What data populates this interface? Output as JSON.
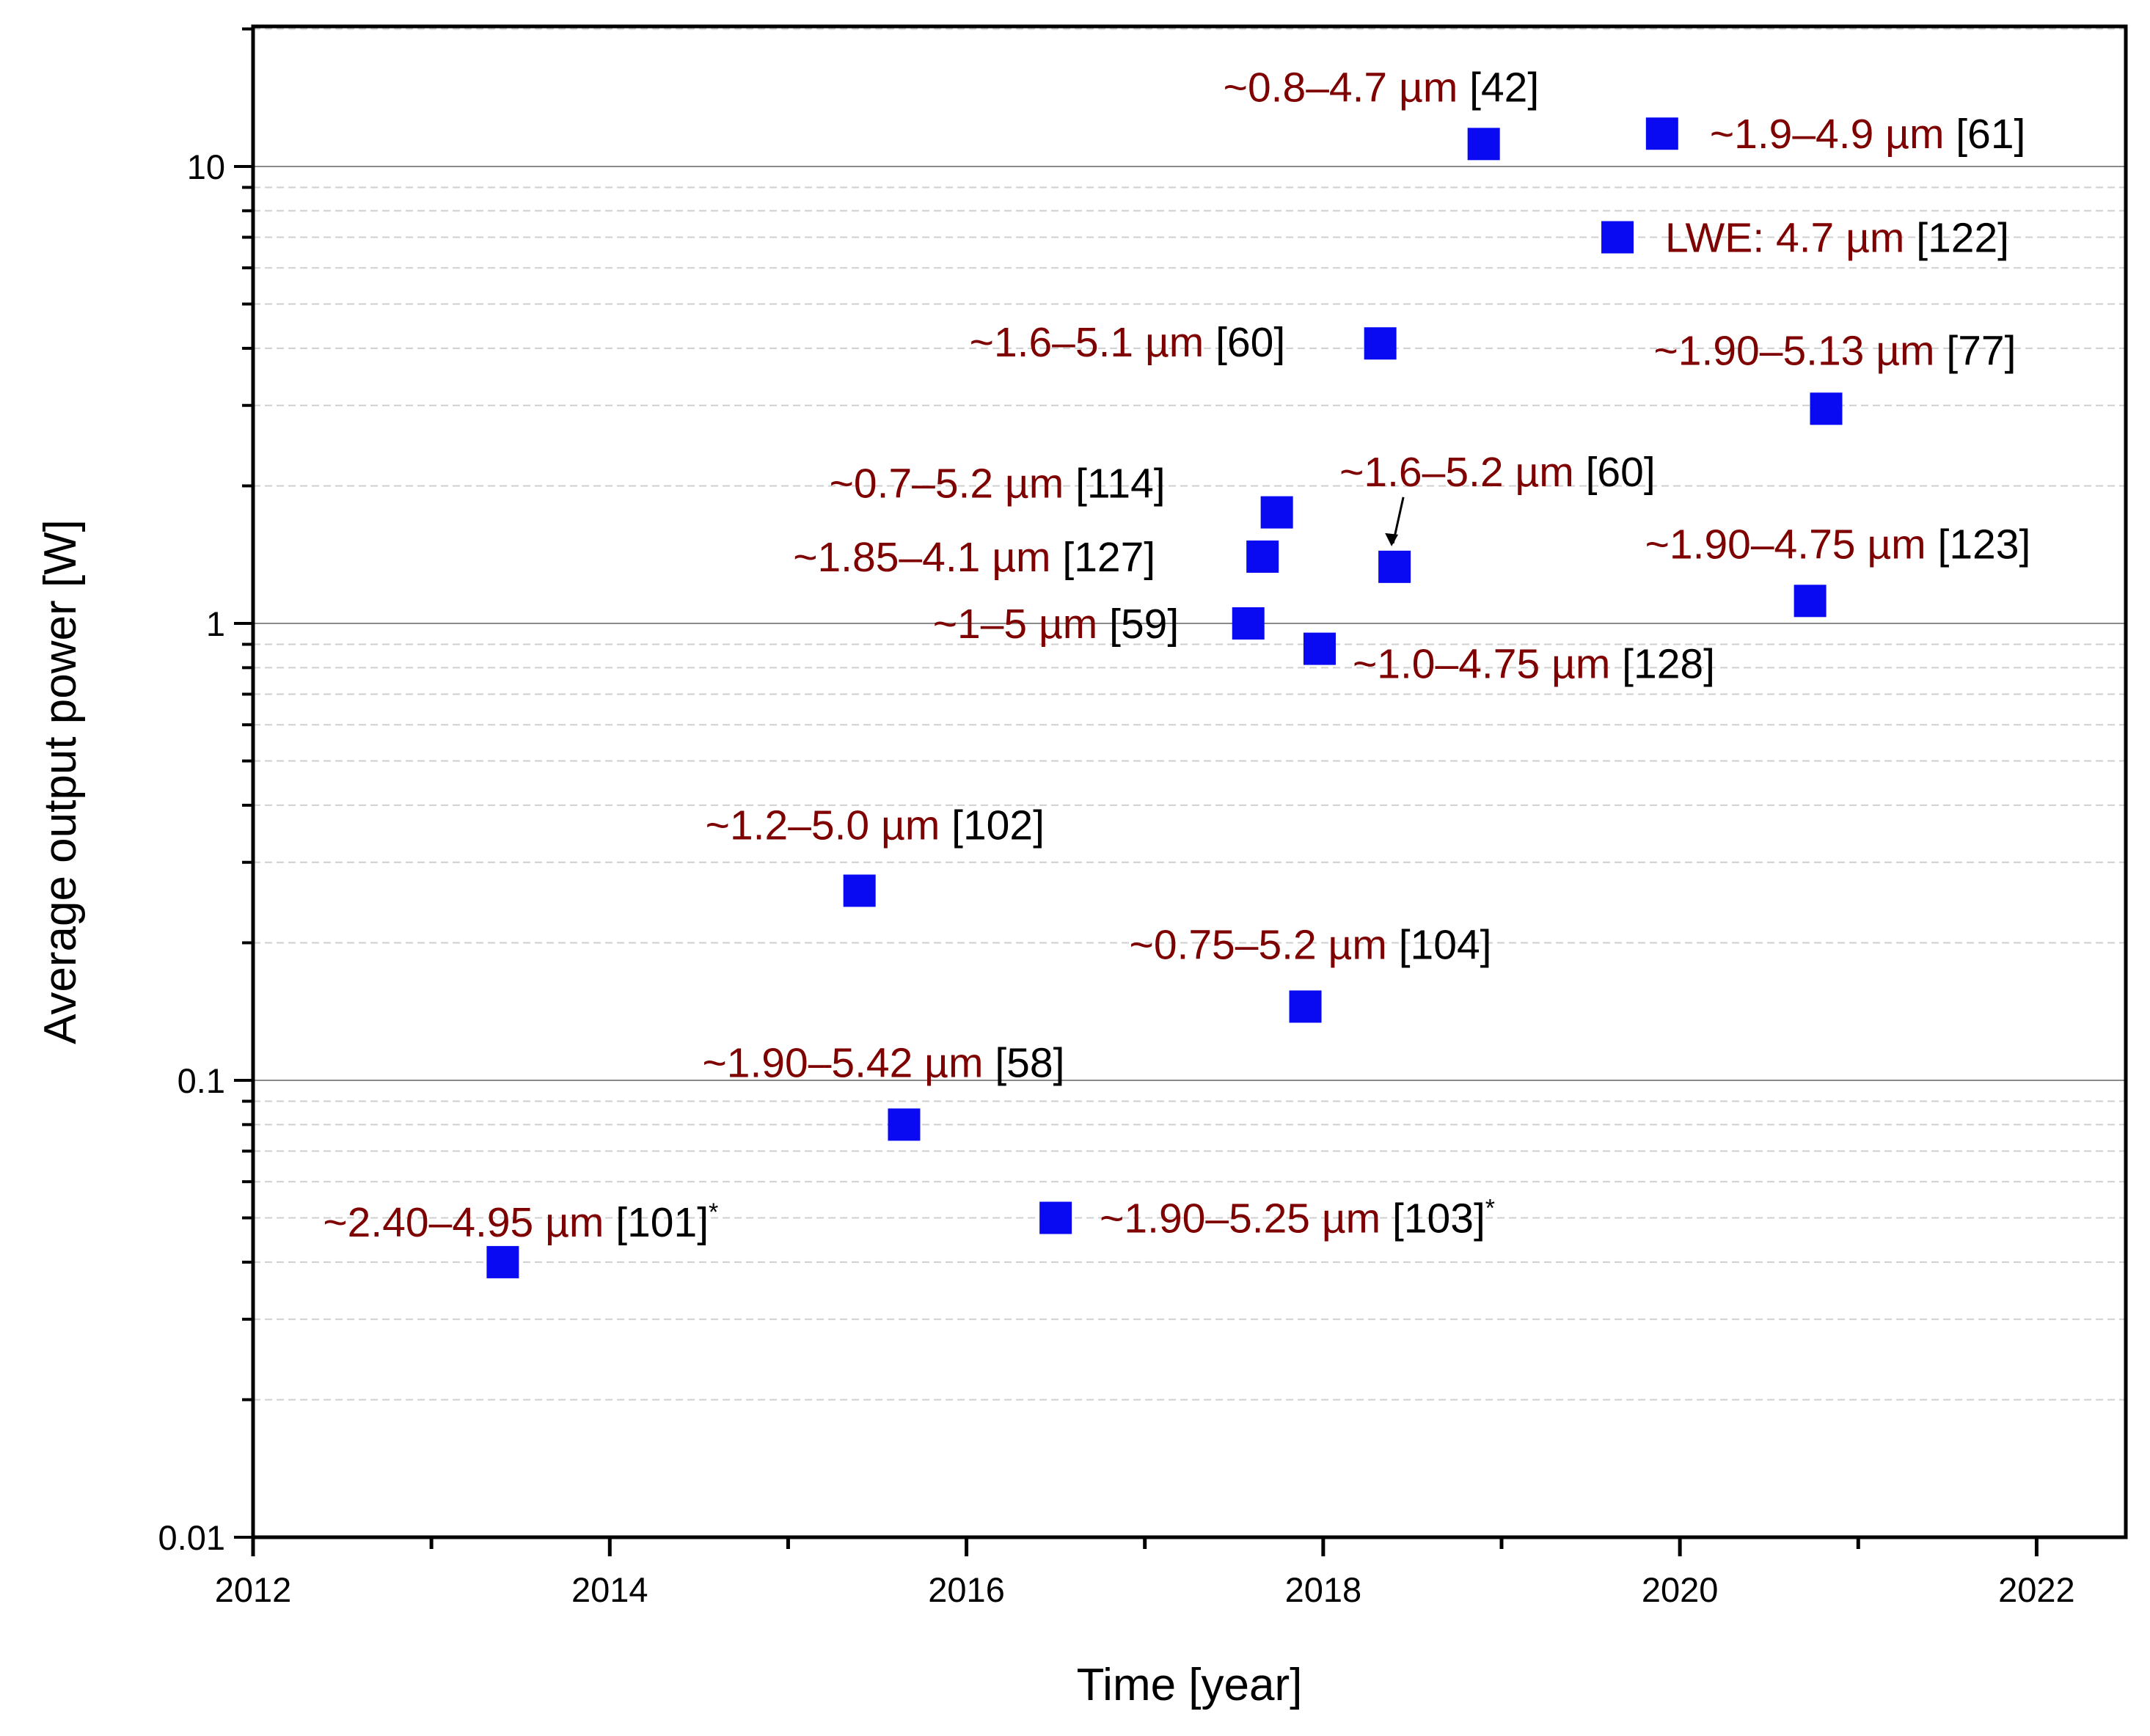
{
  "chart_data": {
    "type": "scatter",
    "title": "",
    "xlabel": "Time [year]",
    "ylabel": "Average output power [W]",
    "xlim": [
      2012,
      2022.5
    ],
    "ylim": [
      0.01,
      20
    ],
    "yscale": "log",
    "grid": "horizontal, major solid, minor dashed",
    "x_ticks": [
      "2012",
      "2014",
      "2016",
      "2018",
      "2020",
      "2022"
    ],
    "y_ticks": [
      "0.01",
      "0.1",
      "1",
      "10"
    ],
    "colors": {
      "marker": "#0a0af2",
      "wavelength_text": "#7f0000",
      "ref_text": "#000000"
    },
    "points": [
      {
        "x": 2013.4,
        "y": 0.04,
        "label": "~2.40–4.95 µm",
        "ref": "[101]",
        "note": "*"
      },
      {
        "x": 2015.4,
        "y": 0.26,
        "label": "~1.2–5.0 µm",
        "ref": "[102]",
        "note": ""
      },
      {
        "x": 2015.65,
        "y": 0.08,
        "label": "~1.90–5.42 µm",
        "ref": "[58]",
        "note": ""
      },
      {
        "x": 2016.5,
        "y": 0.05,
        "label": "~1.90–5.25 µm",
        "ref": "[103]",
        "note": "*"
      },
      {
        "x": 2017.58,
        "y": 1.0,
        "label": "~1–5 µm",
        "ref": "[59]",
        "note": ""
      },
      {
        "x": 2017.66,
        "y": 1.4,
        "label": "~1.85–4.1 µm",
        "ref": "[127]",
        "note": ""
      },
      {
        "x": 2017.74,
        "y": 1.75,
        "label": "~0.7–5.2 µm",
        "ref": "[114]",
        "note": ""
      },
      {
        "x": 2017.9,
        "y": 0.145,
        "label": "~0.75–5.2 µm",
        "ref": "[104]",
        "note": ""
      },
      {
        "x": 2017.98,
        "y": 0.88,
        "label": "~1.0–4.75 µm",
        "ref": "[128]",
        "note": ""
      },
      {
        "x": 2018.32,
        "y": 4.1,
        "label": "~1.6–5.1 µm",
        "ref": "[60]",
        "note": ""
      },
      {
        "x": 2018.4,
        "y": 1.33,
        "label": "~1.6–5.2 µm",
        "ref": "[60]",
        "note": ""
      },
      {
        "x": 2018.9,
        "y": 11.2,
        "label": "~0.8–4.7 µm",
        "ref": "[42]",
        "note": ""
      },
      {
        "x": 2019.65,
        "y": 7.0,
        "label": "LWE: 4.7 µm",
        "ref": "[122]",
        "note": ""
      },
      {
        "x": 2019.9,
        "y": 11.8,
        "label": "~1.9–4.9 µm",
        "ref": "[61]",
        "note": ""
      },
      {
        "x": 2020.73,
        "y": 1.12,
        "label": "~1.90–4.75 µm",
        "ref": "[123]",
        "note": ""
      },
      {
        "x": 2020.82,
        "y": 2.95,
        "label": "~1.90–5.13 µm",
        "ref": "[77]",
        "note": ""
      }
    ]
  }
}
